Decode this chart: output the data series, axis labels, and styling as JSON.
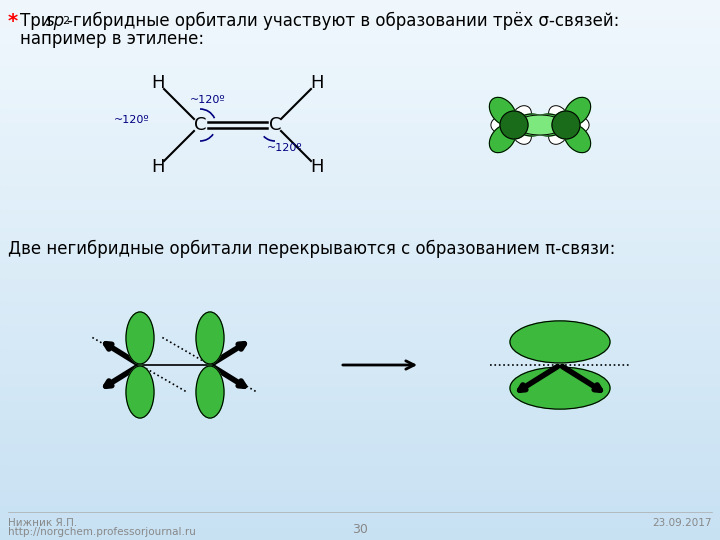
{
  "bg_color_top_left": "#b8d8f0",
  "bg_color_bottom_right": "#e8f4ff",
  "title_star": "*",
  "title_main": "Три ",
  "title_sp": "sp",
  "title_sup": "2",
  "title_rest": "-гибридные орбитали участвуют в образовании трёх σ-связей:",
  "subtitle": "   например в этилене:",
  "bottom_left_line1": "Нижник Я.П.",
  "bottom_left_line2": "http://norgchem.professorjournal.ru",
  "bottom_center": "30",
  "bottom_right": "23.09.2017",
  "mid_text": "Две негибридные орбитали перекрываются с образованием π-связи:",
  "green_dark": "#1a6b1a",
  "green_light": "#3dba3d",
  "angle_label": "~120º"
}
